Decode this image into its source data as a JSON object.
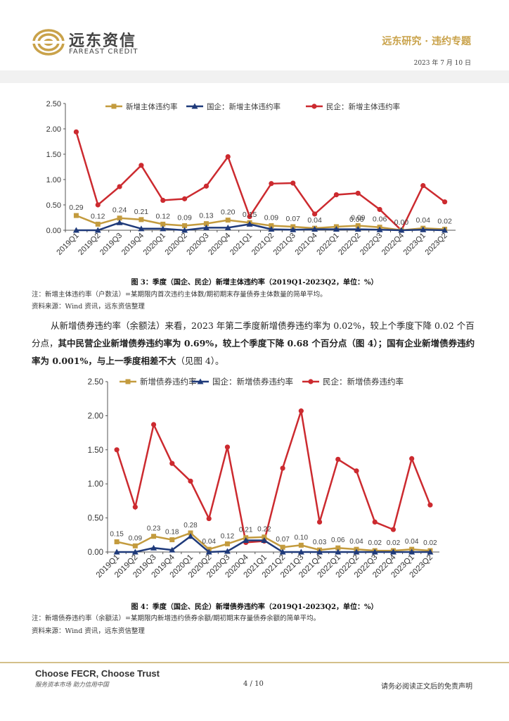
{
  "header": {
    "logo_cn": "远东资信",
    "logo_en": "FAREAST CREDIT",
    "series": "远东研究 · 违约专题",
    "date": "2023 年 7 月 10 日"
  },
  "chart3": {
    "caption": "图 3：季度（国企、民企）新增主体违约率（2019Q1-2023Q2，单位：%）",
    "note": "注：新增主体违约率（户数法）=某期限内首次违约主体数/期初期末存量债券主体数量的简单平均。",
    "source": "资料来源：Wind 资讯，远东资信整理"
  },
  "paragraph": {
    "normal": "从新增债券违约率（余额法）来看，2023 年第二季度新增债券违约率为 0.02%，较上个季度下降 0.02 个百分点，",
    "bold": "其中民营企业新增债券违约率为 0.69%，较上个季度下降 0.68 个百分点（图 4）；国有企业新增债券违约率为 0.001%，与上一季度相差不大",
    "tail": "（见图 4）。"
  },
  "chart4": {
    "caption": "图 4：季度（国企、民企）新增债券违约率（2019Q1-2023Q2，单位：%）",
    "note": "注：新增债券违约率（余额法）=某期限内新增违约债券余额/期初期末存量债券余额的简单平均。",
    "source": "资料来源：Wind 资讯，远东资信整理"
  },
  "footer": {
    "slogan_en": "Choose FECR, Choose Trust",
    "slogan_cn": "服务资本市场  助力信用中国",
    "page": "4 / 10",
    "disclaimer": "请务必阅读正文后的免责声明"
  },
  "colors": {
    "total": "#c39b3e",
    "soe": "#1f3a7a",
    "private": "#cc2a2f"
  },
  "chart_data": [
    {
      "type": "line",
      "categories": [
        "2019Q1",
        "2019Q2",
        "2019Q3",
        "2019Q4",
        "2020Q1",
        "2020Q2",
        "2020Q3",
        "2020Q4",
        "2021Q1",
        "2021Q2",
        "2021Q3",
        "2021Q4",
        "2022Q1",
        "2022Q2",
        "2022Q3",
        "2022Q4",
        "2023Q1",
        "2023Q2"
      ],
      "ylim": [
        0,
        2.5
      ],
      "yticks": [
        "0.00",
        "0.50",
        "1.00",
        "1.50",
        "2.00",
        "2.50"
      ],
      "legend_position": "top",
      "series": [
        {
          "name": "新增主体违约率",
          "values": [
            0.29,
            0.12,
            0.24,
            0.21,
            0.12,
            0.09,
            0.13,
            0.2,
            0.15,
            0.09,
            0.07,
            0.04,
            0.07,
            0.09,
            0.06,
            0.0,
            0.04,
            0.02
          ],
          "labels": [
            "0.29",
            "0.12",
            "0.24",
            "0.21",
            "0.12",
            "0.09",
            "0.13",
            "0.20",
            "0.15",
            "0.09",
            "0.07",
            "0.04",
            "",
            "0.09",
            "0.06",
            "0.00",
            "0.04",
            "0.02"
          ]
        },
        {
          "name": "国企：新增主体违约率",
          "values": [
            0.0,
            0.0,
            0.15,
            0.03,
            0.03,
            0.0,
            0.05,
            0.05,
            0.12,
            0.02,
            0.01,
            0.02,
            0.02,
            0.02,
            0.01,
            0.0,
            0.01,
            0.0
          ]
        },
        {
          "name": "民企：新增主体违约率",
          "values": [
            1.94,
            0.5,
            0.86,
            1.28,
            0.59,
            0.62,
            0.87,
            1.45,
            0.27,
            0.92,
            0.93,
            0.32,
            0.7,
            0.73,
            0.41,
            0.0,
            0.88,
            0.56
          ]
        }
      ],
      "extra_labels": [
        "0.06"
      ]
    },
    {
      "type": "line",
      "categories": [
        "2019Q1",
        "2019Q2",
        "2019Q3",
        "2019Q4",
        "2020Q1",
        "2020Q2",
        "2020Q3",
        "2020Q4",
        "2021Q1",
        "2021Q2",
        "2021Q3",
        "2021Q4",
        "2022Q1",
        "2022Q2",
        "2022Q3",
        "2022Q4",
        "2023Q1",
        "2023Q2"
      ],
      "ylim": [
        0,
        2.5
      ],
      "yticks": [
        "0.00",
        "0.50",
        "1.00",
        "1.50",
        "2.00",
        "2.50"
      ],
      "legend_position": "top",
      "series": [
        {
          "name": "新增债券违约率",
          "values": [
            0.15,
            0.09,
            0.23,
            0.18,
            0.28,
            0.04,
            0.12,
            0.21,
            0.22,
            0.07,
            0.1,
            0.03,
            0.06,
            0.04,
            0.02,
            0.02,
            0.04,
            0.02
          ],
          "labels": [
            "0.15",
            "0.09",
            "0.23",
            "0.18",
            "0.28",
            "0.04",
            "0.12",
            "0.21",
            "0.22",
            "0.07",
            "0.10",
            "0.03",
            "0.06",
            "0.04",
            "0.02",
            "0.02",
            "0.04",
            "0.02"
          ]
        },
        {
          "name": "国企：新增债券违约率",
          "values": [
            0.0,
            0.0,
            0.06,
            0.03,
            0.23,
            0.0,
            0.01,
            0.17,
            0.17,
            0.0,
            0.0,
            0.0,
            0.0,
            0.0,
            0.0,
            0.0,
            0.0,
            0.0
          ]
        },
        {
          "name": "民企：新增债券违约率",
          "values": [
            1.5,
            0.66,
            1.87,
            1.3,
            1.04,
            0.49,
            1.54,
            0.14,
            0.16,
            1.23,
            2.07,
            0.44,
            1.36,
            1.19,
            0.44,
            0.33,
            1.37,
            0.69
          ]
        }
      ]
    }
  ]
}
